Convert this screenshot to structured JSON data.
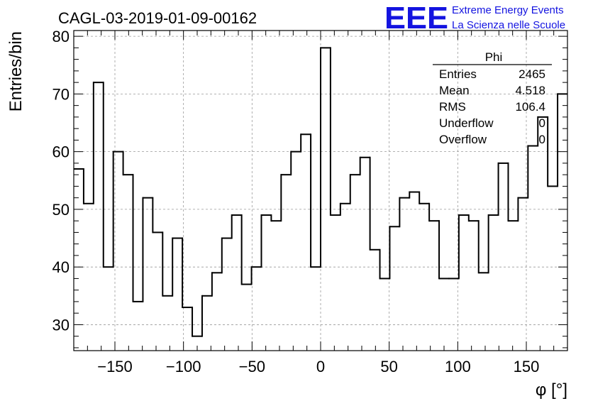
{
  "chart_data": {
    "type": "bar",
    "title": "CAGL-03-2019-01-09-00162",
    "xlabel": "φ [°]",
    "ylabel": "Entries/bin",
    "xlim": [
      -180,
      180
    ],
    "ylim": [
      25.5,
      81
    ],
    "bin_width": 7.2,
    "bin_start": -180,
    "values": [
      57,
      51,
      72,
      40,
      60,
      56,
      34,
      52,
      46,
      35,
      45,
      33,
      28,
      35,
      39,
      45,
      49,
      37,
      40,
      49,
      48,
      56,
      60,
      63,
      40,
      78,
      49,
      51,
      56,
      59,
      43,
      38,
      47,
      52,
      53,
      51,
      48,
      38,
      38,
      49,
      48,
      39,
      49,
      58,
      48,
      52,
      61,
      66,
      54,
      70
    ],
    "x_ticks": [
      -150,
      -100,
      -50,
      0,
      50,
      100,
      150
    ],
    "x_tick_labels": [
      "−150",
      "−100",
      "−50",
      "0",
      "50",
      "100",
      "150"
    ],
    "y_ticks": [
      30,
      40,
      50,
      60,
      70,
      80
    ],
    "y_tick_labels": [
      "30",
      "40",
      "50",
      "60",
      "70",
      "80"
    ],
    "grid": true,
    "line_color": "#000000",
    "stats": {
      "name": "Phi",
      "entries_label": "Entries",
      "entries": "2465",
      "mean_label": "Mean",
      "mean": "4.518",
      "rms_label": "RMS",
      "rms": "106.4",
      "underflow_label": "Underflow",
      "underflow": "0",
      "overflow_label": "Overflow",
      "overflow": "0"
    }
  },
  "logo": {
    "letters": "EEE",
    "line1": "Extreme Energy Events",
    "line2": "La Scienza nelle Scuole",
    "color": "#1414e0"
  }
}
